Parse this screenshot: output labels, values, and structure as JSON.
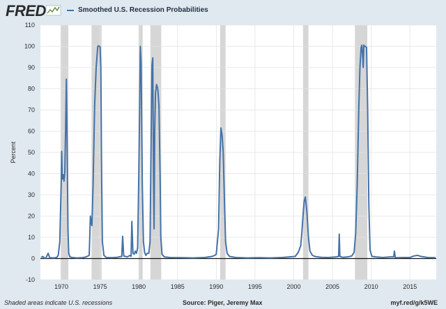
{
  "header": {
    "logo_text": "FRED",
    "legend_label": "Smoothed U.S. Recession Probabilities"
  },
  "footer": {
    "note": "Shaded areas indicate U.S. recessions",
    "source": "Source: Piger, Jeremy Max",
    "link": "myf.red/g/k5WE"
  },
  "colors": {
    "line": "#4472a8",
    "recession_band": "#d6d6d6",
    "background": "#e1e9f0",
    "plot": "#ffffff"
  },
  "chart_data": {
    "type": "line",
    "title": "",
    "xlabel": "",
    "ylabel": "Percent",
    "xlim": [
      1967.3,
      2018.4
    ],
    "ylim": [
      -10,
      110
    ],
    "yticks": [
      -10,
      0,
      10,
      20,
      30,
      40,
      50,
      60,
      70,
      80,
      90,
      100,
      110
    ],
    "xticks": [
      1970,
      1975,
      1980,
      1985,
      1990,
      1995,
      2000,
      2005,
      2010,
      2015
    ],
    "grid": true,
    "recessions": [
      [
        1969.9,
        1970.9
      ],
      [
        1973.9,
        1975.2
      ],
      [
        1980.0,
        1980.5
      ],
      [
        1981.5,
        1982.9
      ],
      [
        1990.5,
        1991.2
      ],
      [
        2001.2,
        2001.9
      ],
      [
        2007.9,
        2009.5
      ]
    ],
    "series": [
      {
        "name": "Smoothed U.S. Recession Probabilities",
        "x": [
          1967.4,
          1967.6,
          1967.8,
          1968.0,
          1968.3,
          1968.5,
          1969.0,
          1969.4,
          1969.6,
          1969.8,
          1970.0,
          1970.05,
          1970.1,
          1970.15,
          1970.25,
          1970.35,
          1970.45,
          1970.55,
          1970.65,
          1970.75,
          1970.85,
          1970.95,
          1971.1,
          1971.4,
          1972.0,
          1972.7,
          1973.2,
          1973.6,
          1973.75,
          1973.85,
          1973.95,
          1974.1,
          1974.3,
          1974.5,
          1974.7,
          1974.8,
          1975.0,
          1975.1,
          1975.2,
          1975.3,
          1975.5,
          1975.8,
          1976.5,
          1977.2,
          1977.8,
          1977.92,
          1978.05,
          1978.5,
          1978.9,
          1979.0,
          1979.1,
          1979.25,
          1979.4,
          1979.55,
          1979.7,
          1979.85,
          1980.0,
          1980.2,
          1980.3,
          1980.45,
          1980.6,
          1980.75,
          1980.9,
          1981.1,
          1981.3,
          1981.45,
          1981.6,
          1981.7,
          1981.8,
          1981.9,
          1981.97,
          1982.05,
          1982.15,
          1982.3,
          1982.45,
          1982.6,
          1982.75,
          1982.85,
          1983.0,
          1983.3,
          1984.0,
          1985.5,
          1987.0,
          1988.5,
          1989.5,
          1989.8,
          1990.0,
          1990.3,
          1990.45,
          1990.6,
          1990.75,
          1990.9,
          1991.05,
          1991.2,
          1991.4,
          1991.7,
          1992.5,
          1994.0,
          1995.5,
          1997.0,
          1998.5,
          1999.5,
          2000.2,
          2000.6,
          2000.9,
          2001.05,
          2001.2,
          2001.35,
          2001.5,
          2001.7,
          2001.9,
          2002.1,
          2002.4,
          2002.7,
          2003.1,
          2003.6,
          2004.5,
          2005.5,
          2005.8,
          2005.88,
          2005.96,
          2006.3,
          2007.0,
          2007.5,
          2007.8,
          2008.0,
          2008.2,
          2008.4,
          2008.55,
          2008.7,
          2008.8,
          2008.9,
          2008.97,
          2009.05,
          2009.2,
          2009.4,
          2009.55,
          2009.7,
          2009.85,
          2010.1,
          2010.6,
          2011.5,
          2012.5,
          2012.9,
          2013.0,
          2013.1,
          2013.4,
          2014.2,
          2015.0,
          2015.5,
          2016.0,
          2016.4,
          2016.8,
          2017.3,
          2018.3
        ],
        "values": [
          0.5,
          1.0,
          0.3,
          0.2,
          2.5,
          0.4,
          0.3,
          0.5,
          1.5,
          8.0,
          38.0,
          50.5,
          40.0,
          37.5,
          39.5,
          36.5,
          40.5,
          60.0,
          84.5,
          55.0,
          14.0,
          2.5,
          0.8,
          0.5,
          0.3,
          0.4,
          0.8,
          1.5,
          20.0,
          17.0,
          15.5,
          35.0,
          72.0,
          90.0,
          100.0,
          100.2,
          99.8,
          90.0,
          40.0,
          8.0,
          1.5,
          0.5,
          0.4,
          0.6,
          1.0,
          10.5,
          1.2,
          0.8,
          1.5,
          1.0,
          17.5,
          2.5,
          2.0,
          3.5,
          2.5,
          5.0,
          40.0,
          100.0,
          92.0,
          35.0,
          8.0,
          3.0,
          1.5,
          2.5,
          2.5,
          8.0,
          60.0,
          91.0,
          94.5,
          40.0,
          14.0,
          60.0,
          78.0,
          82.0,
          80.0,
          72.0,
          40.0,
          10.0,
          2.0,
          0.8,
          0.5,
          0.4,
          0.3,
          0.5,
          1.0,
          1.5,
          2.0,
          14.0,
          45.0,
          61.5,
          58.0,
          50.0,
          28.0,
          8.0,
          2.5,
          1.0,
          0.5,
          0.3,
          0.4,
          0.3,
          0.5,
          0.8,
          1.0,
          3.0,
          6.0,
          12.0,
          20.0,
          27.0,
          29.0,
          22.0,
          10.0,
          3.5,
          1.5,
          1.0,
          0.8,
          0.6,
          0.5,
          0.8,
          1.0,
          11.5,
          1.0,
          0.6,
          0.8,
          1.2,
          3.0,
          12.0,
          35.0,
          70.0,
          90.0,
          99.5,
          100.5,
          95.0,
          90.0,
          100.5,
          100.0,
          99.5,
          70.0,
          25.0,
          4.0,
          1.0,
          0.8,
          0.5,
          0.8,
          0.8,
          3.5,
          0.6,
          0.4,
          0.5,
          0.5,
          1.2,
          1.5,
          1.0,
          0.8,
          0.5,
          0.4
        ]
      }
    ]
  }
}
